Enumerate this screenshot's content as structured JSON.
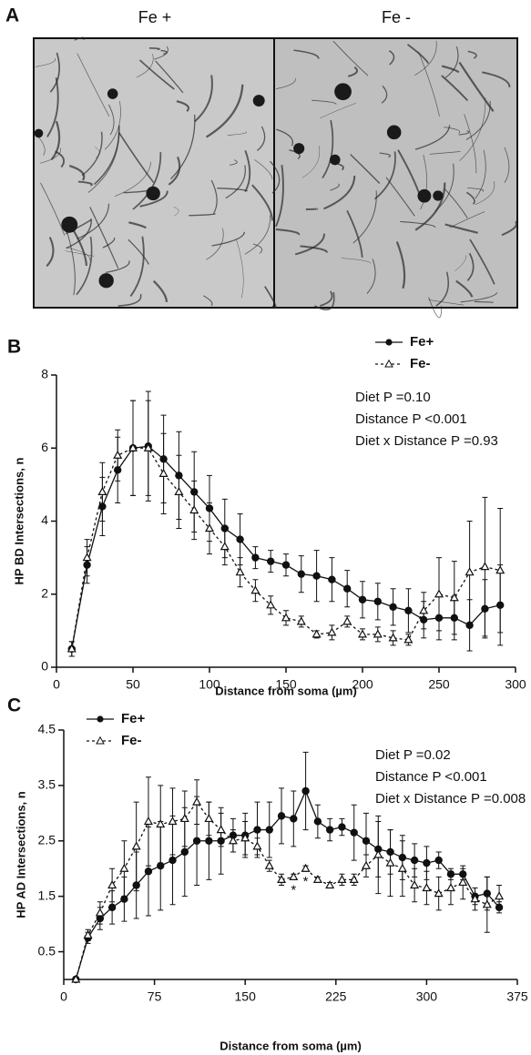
{
  "panel_a": {
    "label": "A",
    "images": [
      {
        "label": "Fe +"
      },
      {
        "label": "Fe -"
      }
    ]
  },
  "chart_data": [
    {
      "type": "line",
      "panel_label": "B",
      "x_label": "Distance from soma (µm)",
      "y_label": "HP BD Intersections, n",
      "annotations": [
        "Diet P =0.10",
        "Distance P <0.001",
        "Diet x Distance P =0.93"
      ],
      "xlim": [
        0,
        300
      ],
      "xticks": [
        0,
        50,
        100,
        150,
        200,
        250,
        300
      ],
      "ylim": [
        0,
        8
      ],
      "yticks": [
        0,
        2,
        4,
        6,
        8
      ],
      "legend": "top-right",
      "x": [
        10,
        20,
        30,
        40,
        50,
        60,
        70,
        80,
        90,
        100,
        110,
        120,
        130,
        140,
        150,
        160,
        170,
        180,
        190,
        200,
        210,
        220,
        230,
        240,
        250,
        260,
        270,
        280,
        290
      ],
      "series": [
        {
          "name": "Fe+",
          "color": "#111111",
          "marker": "circle",
          "line_style": "solid",
          "values": [
            0.5,
            2.8,
            4.4,
            5.4,
            6.0,
            6.05,
            5.7,
            5.25,
            4.8,
            4.35,
            3.8,
            3.5,
            3.0,
            2.9,
            2.8,
            2.55,
            2.5,
            2.4,
            2.15,
            1.85,
            1.8,
            1.65,
            1.55,
            1.3,
            1.35,
            1.35,
            1.15,
            1.6,
            1.7
          ],
          "errors": [
            0.2,
            0.5,
            0.8,
            0.9,
            1.3,
            1.5,
            1.2,
            1.2,
            1.1,
            0.9,
            0.8,
            0.7,
            0.3,
            0.3,
            0.3,
            0.5,
            0.7,
            0.6,
            0.5,
            0.5,
            0.5,
            0.5,
            0.6,
            0.5,
            0.6,
            0.6,
            0.7,
            0.8,
            1.1
          ]
        },
        {
          "name": "Fe-",
          "color": "#111111",
          "marker": "triangle",
          "line_style": "dashed",
          "values": [
            0.5,
            3.0,
            4.8,
            5.8,
            6.0,
            6.0,
            5.3,
            4.8,
            4.3,
            3.8,
            3.3,
            2.6,
            2.1,
            1.7,
            1.35,
            1.25,
            0.9,
            0.95,
            1.25,
            0.9,
            0.9,
            0.8,
            0.75,
            1.55,
            2.0,
            1.9,
            2.6,
            2.75,
            2.65
          ],
          "errors": [
            0.2,
            0.5,
            0.8,
            0.7,
            1.3,
            1.3,
            1.1,
            1.0,
            0.8,
            0.7,
            0.5,
            0.4,
            0.3,
            0.25,
            0.2,
            0.15,
            0.1,
            0.2,
            0.15,
            0.15,
            0.2,
            0.2,
            0.15,
            0.5,
            1.0,
            1.0,
            1.4,
            1.9,
            1.7
          ]
        }
      ]
    },
    {
      "type": "line",
      "panel_label": "C",
      "x_label": "Distance from soma (µm)",
      "y_label": "HP AD Intersections, n",
      "annotations": [
        "Diet P =0.02",
        "Distance P <0.001",
        "Diet x Distance P =0.008"
      ],
      "xlim": [
        0,
        375
      ],
      "xticks": [
        0,
        75,
        150,
        225,
        300,
        375
      ],
      "ylim": [
        0,
        4.5
      ],
      "yticks": [
        0.5,
        1.5,
        2.5,
        3.5,
        4.5
      ],
      "legend": "top-left",
      "x": [
        10,
        20,
        30,
        40,
        50,
        60,
        70,
        80,
        90,
        100,
        110,
        120,
        130,
        140,
        150,
        160,
        170,
        180,
        190,
        200,
        210,
        220,
        230,
        240,
        250,
        260,
        270,
        280,
        290,
        300,
        310,
        320,
        330,
        340,
        350,
        360
      ],
      "series": [
        {
          "name": "Fe+",
          "color": "#111111",
          "marker": "circle",
          "line_style": "solid",
          "values": [
            0,
            0.75,
            1.1,
            1.3,
            1.45,
            1.7,
            1.95,
            2.05,
            2.15,
            2.3,
            2.5,
            2.5,
            2.5,
            2.6,
            2.6,
            2.7,
            2.7,
            2.95,
            2.9,
            3.4,
            2.85,
            2.7,
            2.75,
            2.65,
            2.5,
            2.35,
            2.3,
            2.2,
            2.15,
            2.1,
            2.15,
            1.9,
            1.9,
            1.5,
            1.55,
            1.3
          ],
          "errors": [
            0.05,
            0.1,
            0.2,
            0.3,
            0.4,
            0.6,
            0.8,
            0.8,
            0.8,
            0.8,
            0.8,
            0.7,
            0.6,
            0.3,
            0.4,
            0.5,
            0.5,
            0.5,
            0.5,
            0.7,
            0.3,
            0.2,
            0.15,
            0.5,
            0.5,
            0.5,
            0.4,
            0.4,
            0.3,
            0.3,
            0.15,
            0.1,
            0.1,
            0.15,
            0.3,
            0.1
          ]
        },
        {
          "name": "Fe-",
          "color": "#111111",
          "marker": "triangle",
          "line_style": "dashed",
          "values": [
            0,
            0.8,
            1.2,
            1.7,
            2.0,
            2.4,
            2.85,
            2.8,
            2.85,
            2.9,
            3.2,
            2.9,
            2.7,
            2.5,
            2.55,
            2.4,
            2.05,
            1.8,
            1.85,
            2.0,
            1.8,
            1.7,
            1.8,
            1.8,
            2.05,
            2.25,
            2.1,
            2.0,
            1.7,
            1.65,
            1.55,
            1.65,
            1.75,
            1.45,
            1.35,
            1.5
          ],
          "errors": [
            0.05,
            0.1,
            0.2,
            0.3,
            0.5,
            0.8,
            0.8,
            0.7,
            0.6,
            0.5,
            0.4,
            0.3,
            0.3,
            0.2,
            0.3,
            0.15,
            0.1,
            0.1,
            0.05,
            0.05,
            0.05,
            0.05,
            0.1,
            0.1,
            0.2,
            0.7,
            0.6,
            0.5,
            0.3,
            0.3,
            0.3,
            0.3,
            0.3,
            0.2,
            0.5,
            0.2
          ]
        }
      ],
      "significance": [
        {
          "x": 190,
          "label": "*"
        },
        {
          "x": 200,
          "label": "*"
        }
      ]
    }
  ]
}
